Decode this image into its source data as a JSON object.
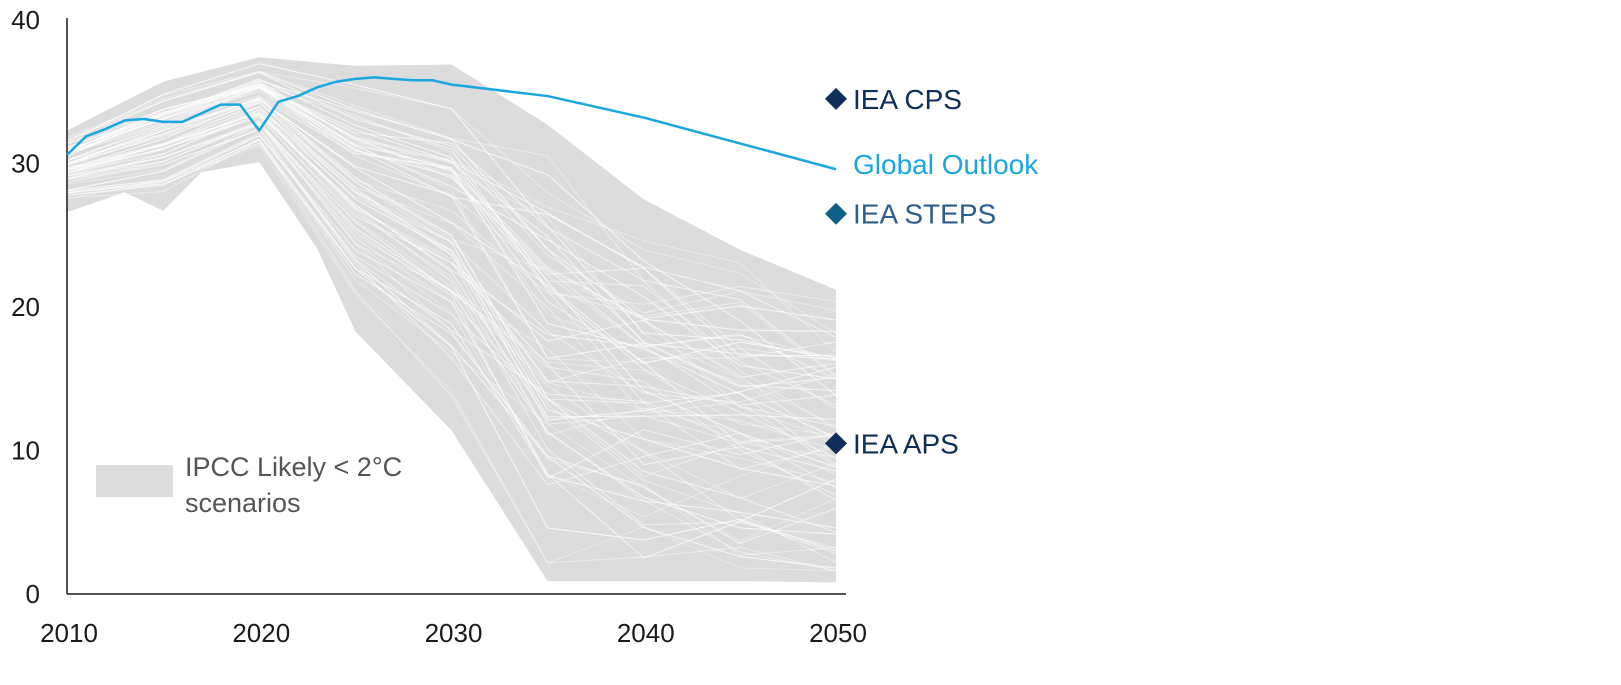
{
  "chart_data": {
    "type": "line",
    "x_ticks": [
      "2010",
      "2020",
      "2030",
      "2040",
      "2050"
    ],
    "y_ticks": [
      "0",
      "10",
      "20",
      "30",
      "40"
    ],
    "xlim": [
      2010,
      2050
    ],
    "ylim": [
      0,
      40
    ],
    "grid": false,
    "colors": {
      "global_outlook": "#1aa7e0",
      "band": "#dcdcdc",
      "cps": "#0d2f5a",
      "steps": "#0f5f86",
      "aps": "#0d2f5a",
      "axis": "#1a1a1a"
    },
    "band": {
      "name": "IPCC Likely < 2°C scenarios",
      "name_line1": "IPCC Likely < 2°C",
      "name_line2": "scenarios",
      "upper": [
        [
          2010,
          32.3
        ],
        [
          2015,
          35.7
        ],
        [
          2020,
          37.4
        ],
        [
          2025,
          36.8
        ],
        [
          2030,
          36.9
        ],
        [
          2035,
          32.7
        ],
        [
          2040,
          27.5
        ],
        [
          2045,
          24.0
        ],
        [
          2050,
          21.2
        ]
      ],
      "lower": [
        [
          2010,
          26.6
        ],
        [
          2013,
          28.0
        ],
        [
          2015,
          26.7
        ],
        [
          2017,
          29.4
        ],
        [
          2020,
          30.1
        ],
        [
          2023,
          24.1
        ],
        [
          2025,
          18.3
        ],
        [
          2030,
          11.4
        ],
        [
          2035,
          0.9
        ],
        [
          2040,
          0.9
        ],
        [
          2045,
          0.9
        ],
        [
          2050,
          0.8
        ]
      ]
    },
    "series": [
      {
        "name": "Global Outlook",
        "x": [
          2010,
          2011,
          2012,
          2013,
          2014,
          2015,
          2016,
          2017,
          2018,
          2019,
          2020,
          2021,
          2022,
          2023,
          2024,
          2025,
          2026,
          2027,
          2028,
          2029,
          2030,
          2035,
          2040,
          2045,
          2050
        ],
        "y": [
          30.6,
          31.9,
          32.4,
          33.0,
          33.1,
          32.9,
          32.9,
          33.5,
          34.1,
          34.1,
          32.3,
          34.3,
          34.7,
          35.3,
          35.7,
          35.9,
          36.0,
          35.9,
          35.8,
          35.8,
          35.5,
          34.7,
          33.2,
          31.4,
          29.6
        ]
      }
    ],
    "markers": [
      {
        "name": "IEA CPS",
        "x": 2050,
        "y": 34.5
      },
      {
        "name": "IEA STEPS",
        "x": 2050,
        "y": 26.5
      },
      {
        "name": "IEA APS",
        "x": 2050,
        "y": 10.5
      }
    ]
  }
}
